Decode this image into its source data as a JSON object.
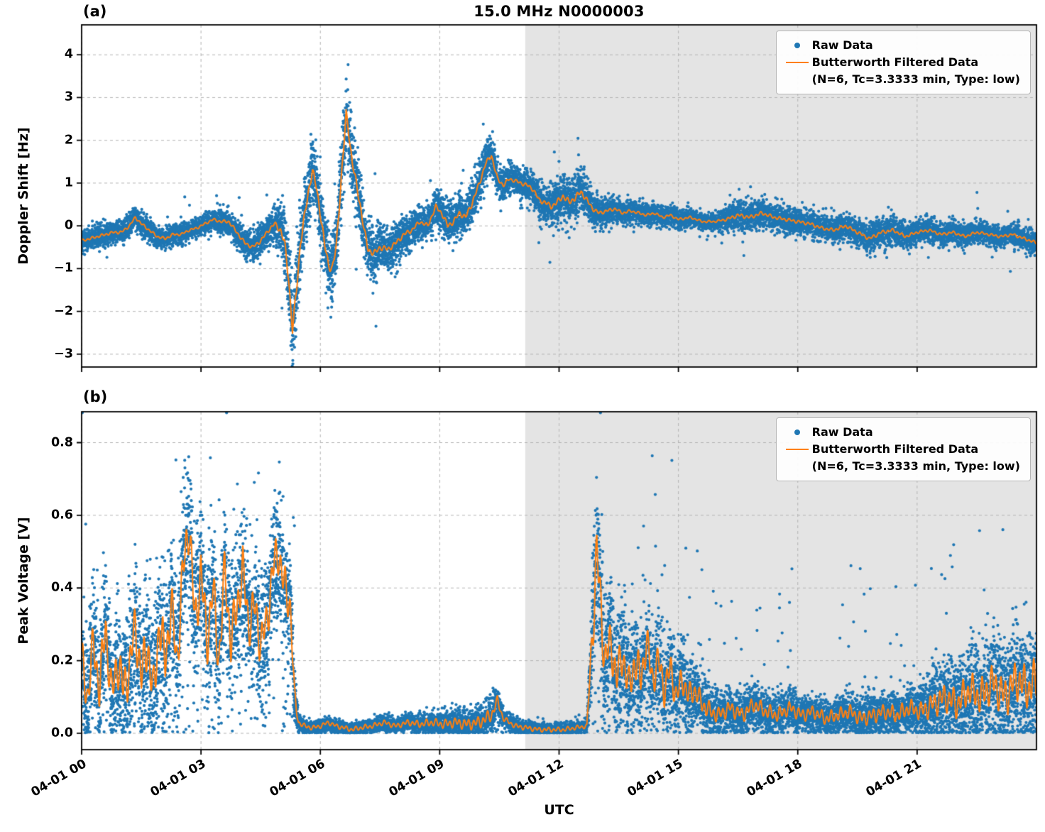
{
  "legend": {
    "raw_label": "Raw Data",
    "filtered_label": "Butterworth Filtered Data",
    "filtered_sublabel": "(N=6, Tc=3.3333 min, Type: low)"
  },
  "colors": {
    "raw": "#1f77b4",
    "filtered": "#ff7f0e",
    "shade": "#e4e4e4",
    "grid": "#b3b3b3",
    "spine": "#000000",
    "background": "#ffffff"
  },
  "chart_data": {
    "type": "scatter",
    "title": "15.0 MHz N0000003",
    "xlabel": "UTC",
    "x_axis": {
      "unit": "hours since 04-01 00:00 UTC",
      "range_hours": [
        0,
        24
      ],
      "ticks": [
        {
          "hour": 0,
          "label": "04-01 00"
        },
        {
          "hour": 3,
          "label": "04-01 03"
        },
        {
          "hour": 6,
          "label": "04-01 06"
        },
        {
          "hour": 9,
          "label": "04-01 09"
        },
        {
          "hour": 12,
          "label": "04-01 12"
        },
        {
          "hour": 15,
          "label": "04-01 15"
        },
        {
          "hour": 18,
          "label": "04-01 18"
        },
        {
          "hour": 21,
          "label": "04-01 21"
        }
      ]
    },
    "shaded_region_hours": [
      11.15,
      24
    ],
    "grid": true,
    "panels": [
      {
        "tag": "(a)",
        "ylabel": "Doppler Shift [Hz]",
        "ylim": [
          -3.3,
          4.7
        ],
        "yticks": [
          {
            "v": -3,
            "label": "−3"
          },
          {
            "v": -2,
            "label": "−2"
          },
          {
            "v": -1,
            "label": "−1"
          },
          {
            "v": 0,
            "label": "0"
          },
          {
            "v": 1,
            "label": "1"
          },
          {
            "v": 2,
            "label": "2"
          },
          {
            "v": 3,
            "label": "3"
          },
          {
            "v": 4,
            "label": "4"
          }
        ],
        "series": {
          "raw": {
            "name": "Raw Data",
            "points": 14000,
            "outlier_prob": 0.01,
            "spike_amp": 0,
            "low_tail_prob": 0,
            "clamp_zero": false,
            "seed": 1337
          },
          "filtered": {
            "name": "Butterworth Filtered Data (N=6, Tc=3.3333 min, Type: low)",
            "line_jitter_frac": 0.25,
            "x": [
              0,
              0.2,
              0.4,
              0.6,
              0.8,
              1.0,
              1.2,
              1.35,
              1.5,
              1.7,
              1.9,
              2.1,
              2.3,
              2.5,
              2.7,
              2.9,
              3.1,
              3.3,
              3.5,
              3.7,
              3.9,
              4.1,
              4.3,
              4.5,
              4.7,
              4.85,
              5.0,
              5.1,
              5.2,
              5.3,
              5.4,
              5.5,
              5.6,
              5.7,
              5.8,
              5.9,
              6.0,
              6.1,
              6.2,
              6.3,
              6.4,
              6.5,
              6.6,
              6.65,
              6.7,
              6.8,
              6.9,
              7.0,
              7.1,
              7.2,
              7.35,
              7.5,
              7.7,
              7.9,
              8.1,
              8.3,
              8.5,
              8.7,
              8.9,
              9.05,
              9.2,
              9.35,
              9.5,
              9.65,
              9.8,
              10.0,
              10.15,
              10.3,
              10.45,
              10.6,
              10.75,
              10.9,
              11.05,
              11.2,
              11.35,
              11.5,
              11.65,
              11.8,
              11.95,
              12.1,
              12.25,
              12.4,
              12.55,
              12.7,
              12.85,
              13.0,
              13.2,
              13.4,
              13.6,
              13.8,
              14.0,
              14.2,
              14.4,
              14.6,
              14.8,
              15.0,
              15.3,
              15.6,
              15.9,
              16.2,
              16.5,
              16.8,
              17.1,
              17.4,
              17.7,
              18.0,
              18.3,
              18.6,
              18.9,
              19.2,
              19.5,
              19.8,
              20.1,
              20.4,
              20.7,
              21.0,
              21.3,
              21.6,
              21.9,
              22.2,
              22.5,
              22.8,
              23.1,
              23.4,
              23.7,
              24.0
            ],
            "y": [
              -0.35,
              -0.3,
              -0.25,
              -0.2,
              -0.15,
              -0.15,
              0.0,
              0.2,
              0.05,
              -0.1,
              -0.25,
              -0.3,
              -0.2,
              -0.2,
              -0.1,
              -0.05,
              0.05,
              0.15,
              0.1,
              0.1,
              -0.15,
              -0.4,
              -0.5,
              -0.35,
              -0.1,
              0.05,
              -0.1,
              -0.4,
              -1.2,
              -2.45,
              -1.5,
              -0.4,
              0.2,
              0.8,
              1.3,
              0.9,
              0.3,
              -0.4,
              -0.9,
              -1.0,
              -0.5,
              0.8,
              2.0,
              2.6,
              2.3,
              1.5,
              1.0,
              0.5,
              -0.1,
              -0.55,
              -0.65,
              -0.5,
              -0.55,
              -0.4,
              -0.2,
              -0.1,
              0.1,
              0.0,
              0.45,
              0.3,
              0.0,
              0.1,
              0.3,
              0.2,
              0.5,
              1.0,
              1.45,
              1.65,
              1.1,
              0.95,
              1.1,
              1.05,
              1.0,
              0.95,
              0.85,
              0.6,
              0.55,
              0.45,
              0.55,
              0.7,
              0.55,
              0.65,
              0.8,
              0.6,
              0.4,
              0.3,
              0.35,
              0.4,
              0.3,
              0.35,
              0.3,
              0.25,
              0.3,
              0.2,
              0.25,
              0.15,
              0.2,
              0.1,
              0.1,
              0.15,
              0.25,
              0.2,
              0.3,
              0.2,
              0.15,
              0.1,
              0.05,
              -0.05,
              -0.1,
              0.0,
              -0.15,
              -0.3,
              -0.15,
              -0.1,
              -0.25,
              -0.15,
              -0.1,
              -0.2,
              -0.15,
              -0.25,
              -0.15,
              -0.2,
              -0.25,
              -0.2,
              -0.3,
              -0.4
            ]
          }
        },
        "noise_envelope": {
          "x": [
            0,
            1,
            2,
            3,
            4,
            4.8,
            5.1,
            5.4,
            5.8,
            6.2,
            6.6,
            7.0,
            7.4,
            8.0,
            8.6,
            9.2,
            9.8,
            10.3,
            10.8,
            11.3,
            11.8,
            12.3,
            12.6,
            13.0,
            13.5,
            14,
            15,
            16,
            16.5,
            17,
            18,
            19,
            20,
            21,
            22,
            23,
            24
          ],
          "amp": [
            0.14,
            0.16,
            0.15,
            0.13,
            0.2,
            0.22,
            0.45,
            0.5,
            0.45,
            0.5,
            0.55,
            0.4,
            0.32,
            0.26,
            0.22,
            0.28,
            0.3,
            0.25,
            0.2,
            0.22,
            0.28,
            0.35,
            0.3,
            0.2,
            0.16,
            0.15,
            0.13,
            0.12,
            0.22,
            0.2,
            0.18,
            0.18,
            0.2,
            0.16,
            0.15,
            0.15,
            0.17
          ]
        }
      },
      {
        "tag": "(b)",
        "ylabel": "Peak Voltage [V]",
        "ylim": [
          -0.045,
          0.885
        ],
        "yticks": [
          {
            "v": 0,
            "label": "0.0"
          },
          {
            "v": 0.2,
            "label": "0.2"
          },
          {
            "v": 0.4,
            "label": "0.4"
          },
          {
            "v": 0.6,
            "label": "0.6"
          },
          {
            "v": 0.8,
            "label": "0.8"
          }
        ],
        "series": {
          "raw": {
            "name": "Raw Data",
            "points": 14000,
            "outlier_prob": 0.015,
            "spike_amp": 0.35,
            "low_tail_prob": 0.08,
            "clamp_zero": true,
            "seed": 7331
          },
          "filtered": {
            "name": "Butterworth Filtered Data (N=6, Tc=3.3333 min, Type: low)",
            "line_jitter_frac": 0.7,
            "x": [
              0,
              0.15,
              0.3,
              0.45,
              0.6,
              0.75,
              0.9,
              1.05,
              1.2,
              1.35,
              1.5,
              1.65,
              1.8,
              1.95,
              2.1,
              2.25,
              2.4,
              2.55,
              2.7,
              2.85,
              3.0,
              3.15,
              3.3,
              3.45,
              3.6,
              3.75,
              3.9,
              4.05,
              4.2,
              4.35,
              4.5,
              4.65,
              4.8,
              4.95,
              5.1,
              5.25,
              5.35,
              5.45,
              5.6,
              5.8,
              6.0,
              6.2,
              6.4,
              6.6,
              6.8,
              7.0,
              7.3,
              7.6,
              7.9,
              8.2,
              8.5,
              8.8,
              9.1,
              9.4,
              9.7,
              10.0,
              10.3,
              10.45,
              10.6,
              10.9,
              11.2,
              11.5,
              11.8,
              12.1,
              12.4,
              12.7,
              12.85,
              12.95,
              13.05,
              13.15,
              13.3,
              13.45,
              13.6,
              13.75,
              13.9,
              14.05,
              14.2,
              14.35,
              14.5,
              14.65,
              14.8,
              14.95,
              15.1,
              15.25,
              15.4,
              15.6,
              15.8,
              16.0,
              16.3,
              16.6,
              16.9,
              17.2,
              17.5,
              17.8,
              18.1,
              18.4,
              18.7,
              19.0,
              19.3,
              19.6,
              19.9,
              20.2,
              20.5,
              20.8,
              21.1,
              21.4,
              21.7,
              22.0,
              22.3,
              22.6,
              22.9,
              23.2,
              23.5,
              23.8,
              24.0
            ],
            "y": [
              0.2,
              0.1,
              0.25,
              0.12,
              0.3,
              0.1,
              0.2,
              0.12,
              0.18,
              0.3,
              0.15,
              0.25,
              0.1,
              0.3,
              0.2,
              0.35,
              0.2,
              0.45,
              0.58,
              0.3,
              0.45,
              0.25,
              0.4,
              0.2,
              0.45,
              0.25,
              0.35,
              0.45,
              0.3,
              0.35,
              0.25,
              0.3,
              0.45,
              0.5,
              0.4,
              0.35,
              0.1,
              0.03,
              0.02,
              0.015,
              0.02,
              0.03,
              0.02,
              0.015,
              0.01,
              0.015,
              0.02,
              0.03,
              0.02,
              0.03,
              0.025,
              0.03,
              0.025,
              0.03,
              0.025,
              0.03,
              0.05,
              0.09,
              0.04,
              0.02,
              0.015,
              0.01,
              0.01,
              0.01,
              0.015,
              0.02,
              0.3,
              0.5,
              0.35,
              0.2,
              0.25,
              0.15,
              0.22,
              0.12,
              0.2,
              0.15,
              0.25,
              0.15,
              0.2,
              0.12,
              0.18,
              0.1,
              0.15,
              0.1,
              0.12,
              0.08,
              0.06,
              0.05,
              0.07,
              0.05,
              0.08,
              0.06,
              0.05,
              0.07,
              0.05,
              0.06,
              0.04,
              0.05,
              0.06,
              0.04,
              0.05,
              0.06,
              0.05,
              0.07,
              0.06,
              0.08,
              0.1,
              0.08,
              0.12,
              0.1,
              0.14,
              0.1,
              0.15,
              0.12,
              0.15
            ]
          }
        },
        "noise_envelope": {
          "x": [
            0,
            1,
            2,
            3,
            4,
            5.2,
            5.45,
            6,
            8,
            10.3,
            10.6,
            12.7,
            12.9,
            13.2,
            14,
            15,
            15.6,
            16,
            17,
            18,
            19,
            20,
            21,
            21.5,
            22,
            23,
            24
          ],
          "amp": [
            0.1,
            0.11,
            0.12,
            0.12,
            0.11,
            0.1,
            0.012,
            0.01,
            0.012,
            0.03,
            0.012,
            0.01,
            0.15,
            0.1,
            0.09,
            0.07,
            0.045,
            0.035,
            0.035,
            0.03,
            0.03,
            0.035,
            0.04,
            0.06,
            0.07,
            0.09,
            0.1
          ]
        }
      }
    ]
  }
}
